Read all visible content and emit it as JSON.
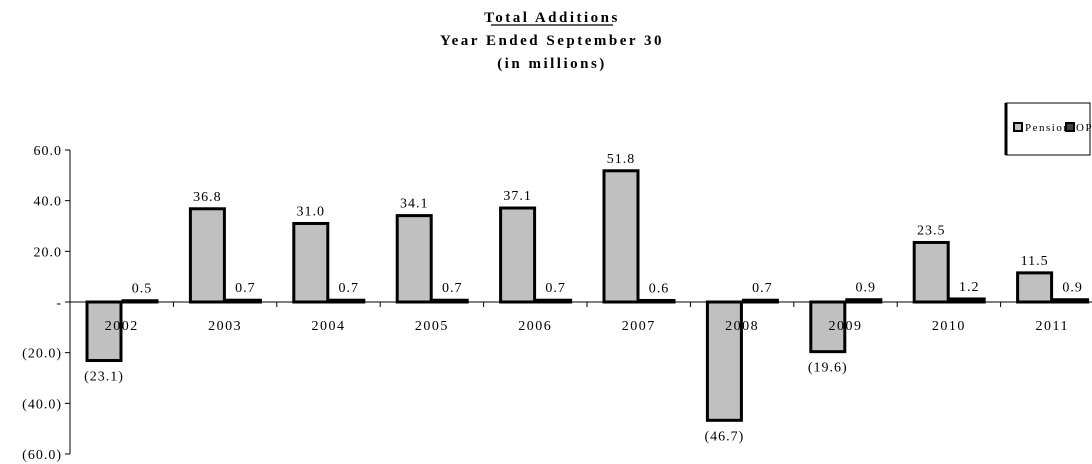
{
  "chart_data": {
    "type": "bar",
    "title": "Total Additions",
    "subtitle_lines": [
      "Year Ended September 30",
      "(in millions)"
    ],
    "categories": [
      "2002",
      "2003",
      "2004",
      "2005",
      "2006",
      "2007",
      "2008",
      "2009",
      "2010",
      "2011"
    ],
    "series": [
      {
        "name": "Pension",
        "values": [
          -23.1,
          36.8,
          31.0,
          34.1,
          37.1,
          51.8,
          -46.7,
          -19.6,
          23.5,
          11.5
        ],
        "labels": [
          "(23.1)",
          "36.8",
          "31.0",
          "34.1",
          "37.1",
          "51.8",
          "(46.7)",
          "(19.6)",
          "23.5",
          "11.5"
        ]
      },
      {
        "name": "OPEB",
        "values": [
          0.5,
          0.7,
          0.7,
          0.7,
          0.7,
          0.6,
          0.7,
          0.9,
          1.2,
          0.9
        ],
        "labels": [
          "0.5",
          "0.7",
          "0.7",
          "0.7",
          "0.7",
          "0.6",
          "0.7",
          "0.9",
          "1.2",
          "0.9"
        ]
      }
    ],
    "ylim": [
      -60,
      60
    ],
    "yticks": [
      60,
      40,
      20,
      0,
      -20,
      -40,
      -60
    ],
    "ytick_labels": [
      "60.0",
      "40.0",
      "20.0",
      "-",
      "(20.0)",
      "(40.0)",
      "(60.0)"
    ],
    "xlabel": "",
    "ylabel": "",
    "grid": false,
    "legend_position": "top-right",
    "colors": {
      "pension": "#c0c0c0",
      "opeb": "#404040",
      "outline": "#000000"
    }
  }
}
